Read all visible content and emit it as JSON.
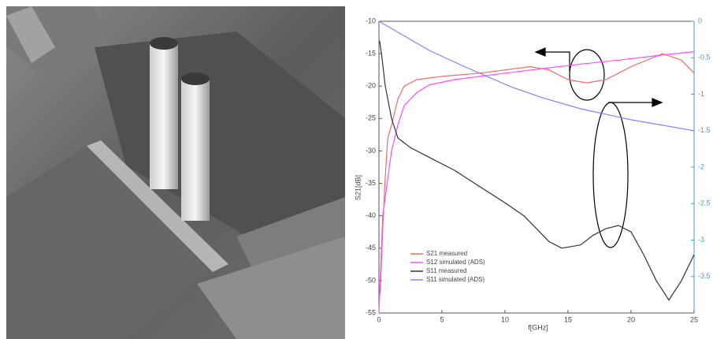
{
  "chart_data": {
    "type": "line",
    "xlabel": "f[GHz]",
    "ylabel": "S21[dB]",
    "xlim": [
      0,
      25
    ],
    "xticks": [
      0,
      5,
      10,
      15,
      20,
      25
    ],
    "ylim": [
      -55,
      -10
    ],
    "yticks": [
      -55,
      -50,
      -45,
      -40,
      -35,
      -30,
      -25,
      -20,
      -15,
      -10
    ],
    "y2lim": [
      -4,
      0
    ],
    "y2ticks": [
      -3.5,
      -3,
      -2.5,
      -2,
      -1.5,
      -1,
      -0.5,
      0
    ],
    "legend": "lower left",
    "series": [
      {
        "name": "S21 measured",
        "color": "#f26b6b",
        "x": [
          0.1,
          0.3,
          0.5,
          0.7,
          1,
          1.5,
          2,
          3,
          5,
          8,
          10,
          12,
          13.5,
          15,
          16.5,
          18,
          20,
          22.5,
          24,
          25
        ],
        "values": [
          -52,
          -42,
          -34,
          -28,
          -26,
          -22,
          -20,
          -19,
          -18.5,
          -18,
          -17.5,
          -17,
          -17.5,
          -19,
          -19.5,
          -19,
          -17,
          -15,
          -16,
          -18
        ]
      },
      {
        "name": "S12 simulated (ADS)",
        "color": "#ff4dff",
        "x": [
          0,
          0.3,
          1,
          1.5,
          2,
          3,
          4,
          6,
          8,
          10,
          13,
          16,
          19,
          22,
          25
        ],
        "values": [
          -55,
          -40,
          -30,
          -26,
          -23,
          -21,
          -19.8,
          -19,
          -18.5,
          -18,
          -17.3,
          -16.6,
          -16,
          -15.3,
          -14.7
        ]
      },
      {
        "name": "S11 measured",
        "color": "#333333",
        "x": [
          0.05,
          0.2,
          0.5,
          1,
          1.5,
          2.5,
          4,
          6,
          8,
          10,
          11.5,
          12.5,
          13.5,
          14.5,
          16,
          17,
          18,
          19,
          20,
          21,
          22,
          23,
          24,
          25
        ],
        "values": [
          -13,
          -15,
          -20,
          -25,
          -28,
          -29.5,
          -31,
          -33,
          -35.5,
          -38,
          -40,
          -42,
          -44,
          -45,
          -44.5,
          -43,
          -42,
          -41.5,
          -42.5,
          -46,
          -50,
          -53,
          -50,
          -46
        ]
      },
      {
        "name": "S11 simulated (ADS)",
        "color": "#8080ff",
        "axis": "y2",
        "x": [
          0,
          2,
          4,
          6.5,
          8.5,
          10.5,
          13,
          16,
          20,
          25
        ],
        "values": [
          0,
          -0.2,
          -0.4,
          -0.6,
          -0.75,
          -0.9,
          -1.05,
          -1.2,
          -1.35,
          -1.5
        ]
      }
    ]
  }
}
